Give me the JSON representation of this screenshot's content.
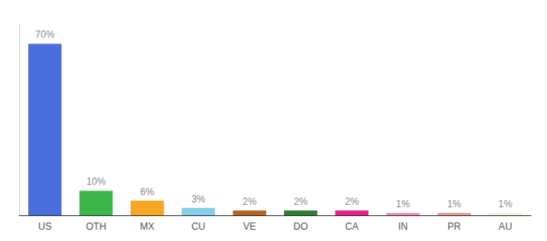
{
  "chart_data": {
    "type": "bar",
    "categories": [
      "US",
      "OTH",
      "MX",
      "CU",
      "VE",
      "DO",
      "CA",
      "IN",
      "PR",
      "AU"
    ],
    "values": [
      70,
      10,
      6,
      3,
      2,
      2,
      2,
      1,
      1,
      1
    ],
    "value_labels": [
      "70%",
      "10%",
      "6%",
      "3%",
      "2%",
      "2%",
      "2%",
      "1%",
      "1%",
      "1%"
    ],
    "colors": [
      "#4a6fdc",
      "#3cb54a",
      "#f5a623",
      "#87ceeb",
      "#b5651d",
      "#2d7d32",
      "#e91e8c",
      "#f48fb1",
      "#e8a090",
      "#f5f0d8"
    ],
    "ylim": [
      0,
      78
    ],
    "grid": false,
    "data_labels": true,
    "tick_labels": "x"
  }
}
